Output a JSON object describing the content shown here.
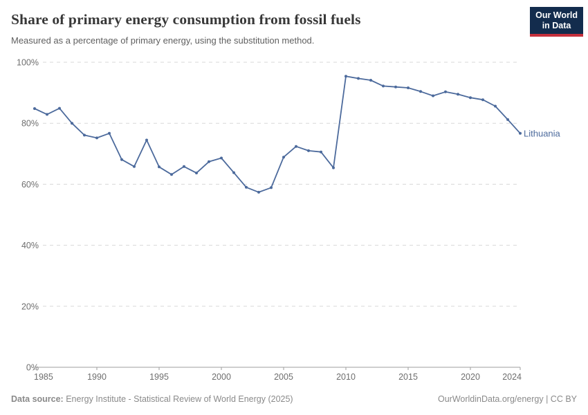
{
  "header": {
    "title": "Share of primary energy consumption from fossil fuels",
    "subtitle": "Measured as a percentage of primary energy, using the substitution method.",
    "logo": {
      "line1": "Our World",
      "line2": "in Data",
      "bg_color": "#132c4d",
      "accent_color": "#c5303c"
    }
  },
  "chart_data": {
    "type": "line",
    "title": "Share of primary energy consumption from fossil fuels",
    "xlabel": "",
    "ylabel": "",
    "x_range": [
      1985,
      2024
    ],
    "ylim": [
      0,
      100
    ],
    "x_ticks": [
      1985,
      1990,
      1995,
      2000,
      2005,
      2010,
      2015,
      2020,
      2024
    ],
    "y_ticks": [
      0,
      20,
      40,
      60,
      80,
      100
    ],
    "y_tick_suffix": "%",
    "grid": "horizontal-dashed",
    "legend_position": "end-of-line",
    "end_label": "Lithuania",
    "series": [
      {
        "name": "Lithuania",
        "color": "#4c6a9c",
        "x": [
          1985,
          1986,
          1987,
          1988,
          1989,
          1990,
          1991,
          1992,
          1993,
          1994,
          1995,
          1996,
          1997,
          1998,
          1999,
          2000,
          2001,
          2002,
          2003,
          2004,
          2005,
          2006,
          2007,
          2008,
          2009,
          2010,
          2011,
          2012,
          2013,
          2014,
          2015,
          2016,
          2017,
          2018,
          2019,
          2020,
          2021,
          2022,
          2023,
          2024
        ],
        "values": [
          84.8,
          82.9,
          84.9,
          80.0,
          76.1,
          75.2,
          76.7,
          68.1,
          65.8,
          74.5,
          65.7,
          63.2,
          65.8,
          63.7,
          67.4,
          68.6,
          63.8,
          59.0,
          57.4,
          58.9,
          68.9,
          72.4,
          71.0,
          70.6,
          65.4,
          95.4,
          94.7,
          94.1,
          92.2,
          91.9,
          91.6,
          90.4,
          89.0,
          90.3,
          89.5,
          88.4,
          87.7,
          85.6,
          81.2,
          76.7
        ]
      }
    ]
  },
  "footer": {
    "datasource_label": "Data source:",
    "datasource_text": " Energy Institute - Statistical Review of World Energy (2025)",
    "right_text": "OurWorldinData.org/energy | CC BY"
  }
}
